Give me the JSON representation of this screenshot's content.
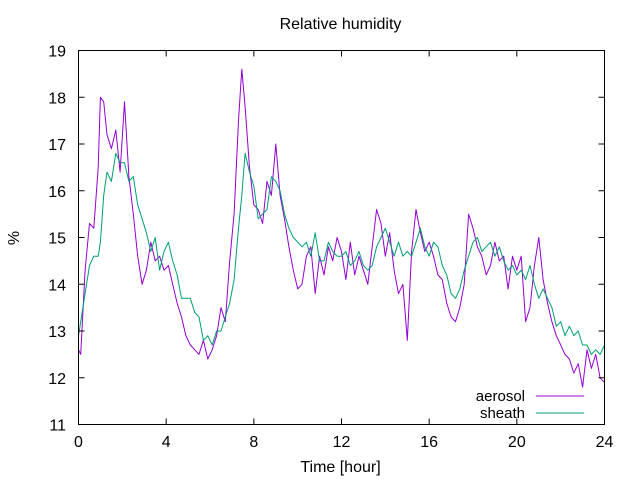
{
  "chart_data": {
    "type": "line",
    "title": "Relative humidity",
    "xlabel": "Time [hour]",
    "ylabel": "%",
    "xlim": [
      0,
      24
    ],
    "ylim": [
      11,
      19
    ],
    "xticks": [
      0,
      4,
      8,
      12,
      16,
      20,
      24
    ],
    "yticks": [
      11,
      12,
      13,
      14,
      15,
      16,
      17,
      18,
      19
    ],
    "grid": false,
    "legend_position": "bottom-right",
    "series": [
      {
        "name": "aerosol",
        "color": "#9400d3",
        "x": [
          0,
          0.1,
          0.3,
          0.5,
          0.7,
          0.9,
          1.0,
          1.15,
          1.3,
          1.5,
          1.7,
          1.9,
          2.1,
          2.3,
          2.5,
          2.7,
          2.9,
          3.1,
          3.3,
          3.5,
          3.7,
          3.9,
          4.1,
          4.3,
          4.5,
          4.7,
          4.9,
          5.1,
          5.3,
          5.5,
          5.7,
          5.9,
          6.1,
          6.3,
          6.5,
          6.7,
          6.9,
          7.1,
          7.3,
          7.45,
          7.6,
          7.8,
          8.0,
          8.2,
          8.4,
          8.6,
          8.8,
          9.0,
          9.2,
          9.4,
          9.6,
          9.8,
          10.0,
          10.2,
          10.4,
          10.6,
          10.8,
          11.0,
          11.2,
          11.4,
          11.6,
          11.8,
          12.0,
          12.2,
          12.4,
          12.6,
          12.8,
          13.0,
          13.2,
          13.4,
          13.6,
          13.8,
          14.0,
          14.2,
          14.4,
          14.6,
          14.8,
          15.0,
          15.2,
          15.4,
          15.6,
          15.8,
          16.0,
          16.2,
          16.4,
          16.6,
          16.8,
          17.0,
          17.2,
          17.4,
          17.6,
          17.8,
          18.0,
          18.2,
          18.4,
          18.6,
          18.8,
          19.0,
          19.2,
          19.4,
          19.6,
          19.8,
          20.0,
          20.2,
          20.4,
          20.6,
          20.8,
          21.0,
          21.2,
          21.4,
          21.6,
          21.8,
          22.0,
          22.2,
          22.4,
          22.6,
          22.8,
          23.0,
          23.2,
          23.4,
          23.6,
          23.8,
          24.0
        ],
        "y": [
          12.6,
          12.5,
          14.3,
          15.3,
          15.2,
          16.5,
          18.0,
          17.9,
          17.2,
          16.9,
          17.3,
          16.4,
          17.9,
          16.3,
          15.5,
          14.6,
          14.0,
          14.3,
          14.9,
          14.5,
          14.6,
          14.3,
          14.4,
          14.0,
          13.6,
          13.3,
          12.9,
          12.7,
          12.6,
          12.5,
          12.8,
          12.4,
          12.6,
          12.9,
          13.5,
          13.2,
          14.5,
          15.5,
          17.5,
          18.6,
          17.8,
          16.5,
          15.7,
          15.6,
          15.3,
          16.2,
          15.9,
          17.0,
          15.9,
          15.4,
          14.8,
          14.3,
          13.9,
          14.0,
          14.6,
          14.8,
          13.8,
          14.6,
          14.2,
          14.8,
          14.5,
          15.0,
          14.7,
          14.1,
          14.9,
          14.2,
          14.6,
          14.3,
          14.0,
          14.8,
          15.6,
          15.3,
          14.6,
          15.1,
          14.3,
          13.8,
          14.0,
          12.8,
          14.7,
          15.6,
          15.1,
          14.7,
          14.9,
          14.6,
          14.2,
          14.1,
          13.6,
          13.3,
          13.2,
          13.5,
          14.0,
          15.5,
          15.2,
          14.8,
          14.6,
          14.2,
          14.4,
          14.9,
          14.5,
          14.6,
          13.9,
          14.6,
          14.3,
          14.6,
          13.2,
          13.5,
          14.4,
          15.0,
          14.1,
          13.6,
          13.2,
          12.9,
          12.7,
          12.5,
          12.4,
          12.1,
          12.3,
          11.8,
          12.6,
          12.2,
          12.5,
          12.0,
          11.9
        ]
      },
      {
        "name": "sheath",
        "color": "#009e73",
        "x": [
          0,
          0.1,
          0.3,
          0.5,
          0.7,
          0.9,
          1.0,
          1.15,
          1.3,
          1.5,
          1.7,
          1.9,
          2.1,
          2.3,
          2.5,
          2.7,
          2.9,
          3.1,
          3.3,
          3.5,
          3.7,
          3.9,
          4.1,
          4.3,
          4.5,
          4.7,
          4.9,
          5.1,
          5.3,
          5.5,
          5.7,
          5.9,
          6.1,
          6.3,
          6.5,
          6.7,
          6.9,
          7.1,
          7.3,
          7.45,
          7.6,
          7.8,
          8.0,
          8.2,
          8.4,
          8.6,
          8.8,
          9.0,
          9.2,
          9.4,
          9.6,
          9.8,
          10.0,
          10.2,
          10.4,
          10.6,
          10.8,
          11.0,
          11.2,
          11.4,
          11.6,
          11.8,
          12.0,
          12.2,
          12.4,
          12.6,
          12.8,
          13.0,
          13.2,
          13.4,
          13.6,
          13.8,
          14.0,
          14.2,
          14.4,
          14.6,
          14.8,
          15.0,
          15.2,
          15.4,
          15.6,
          15.8,
          16.0,
          16.2,
          16.4,
          16.6,
          16.8,
          17.0,
          17.2,
          17.4,
          17.6,
          17.8,
          18.0,
          18.2,
          18.4,
          18.6,
          18.8,
          19.0,
          19.2,
          19.4,
          19.6,
          19.8,
          20.0,
          20.2,
          20.4,
          20.6,
          20.8,
          21.0,
          21.2,
          21.4,
          21.6,
          21.8,
          22.0,
          22.2,
          22.4,
          22.6,
          22.8,
          23.0,
          23.2,
          23.4,
          23.6,
          23.8,
          24.0
        ],
        "y": [
          12.9,
          13.2,
          13.8,
          14.4,
          14.6,
          14.6,
          14.9,
          15.9,
          16.4,
          16.2,
          16.8,
          16.6,
          16.6,
          16.2,
          16.3,
          15.7,
          15.4,
          15.1,
          14.7,
          15.0,
          14.3,
          14.7,
          14.9,
          14.5,
          14.2,
          13.7,
          13.7,
          13.7,
          13.4,
          13.3,
          12.8,
          12.9,
          12.7,
          13.0,
          13.0,
          13.3,
          13.6,
          14.1,
          15.2,
          15.9,
          16.8,
          16.4,
          16.1,
          15.4,
          15.5,
          15.6,
          16.3,
          16.2,
          16.0,
          15.5,
          15.2,
          15.0,
          14.9,
          14.8,
          14.9,
          14.6,
          15.1,
          14.5,
          14.5,
          14.9,
          14.7,
          14.6,
          14.6,
          14.7,
          14.4,
          14.5,
          14.7,
          14.4,
          14.3,
          14.4,
          14.8,
          15.0,
          15.2,
          14.9,
          14.6,
          14.9,
          14.6,
          14.7,
          14.6,
          14.9,
          15.2,
          14.8,
          14.6,
          14.9,
          14.8,
          14.4,
          14.2,
          13.8,
          13.7,
          13.9,
          14.3,
          14.6,
          14.9,
          15.0,
          14.7,
          14.8,
          14.9,
          14.6,
          14.8,
          14.5,
          14.3,
          14.4,
          14.2,
          14.3,
          14.1,
          14.4,
          14.0,
          13.7,
          13.9,
          13.7,
          13.5,
          13.1,
          13.2,
          12.9,
          13.1,
          12.9,
          13.0,
          12.7,
          12.7,
          12.5,
          12.6,
          12.5,
          12.7
        ]
      }
    ]
  }
}
